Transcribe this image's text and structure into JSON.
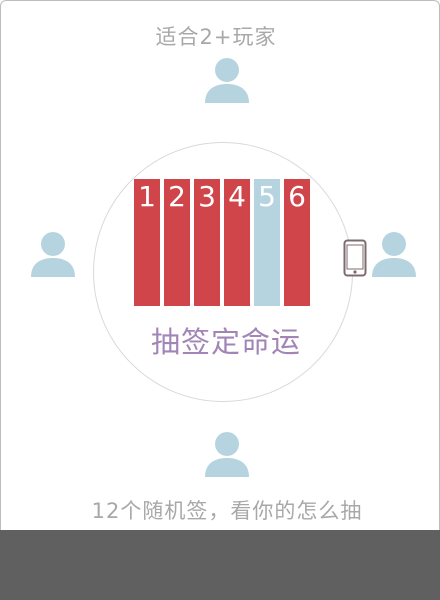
{
  "title": "适合2+玩家",
  "slogan": "抽签定命运",
  "footer_text": "12个随机签，看你的怎么抽",
  "sticks": [
    {
      "number": "1",
      "highlighted": false
    },
    {
      "number": "2",
      "highlighted": false
    },
    {
      "number": "3",
      "highlighted": false
    },
    {
      "number": "4",
      "highlighted": false
    },
    {
      "number": "5",
      "highlighted": true
    },
    {
      "number": "6",
      "highlighted": false
    }
  ],
  "colors": {
    "stick": "#d0454a",
    "stick_highlight": "#b6d4e0",
    "player": "#b6d4e0",
    "slogan": "#a285b6",
    "text": "#a8a8a8",
    "bottom_bar": "#606060"
  },
  "icons": {
    "player": "person-icon",
    "device": "phone-icon"
  }
}
